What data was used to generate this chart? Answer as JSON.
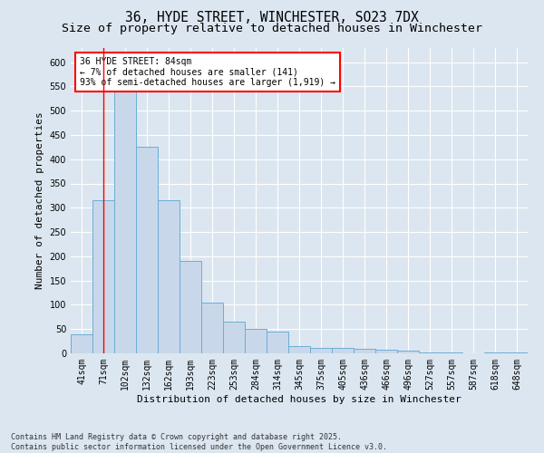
{
  "title_line1": "36, HYDE STREET, WINCHESTER, SO23 7DX",
  "title_line2": "Size of property relative to detached houses in Winchester",
  "xlabel": "Distribution of detached houses by size in Winchester",
  "ylabel": "Number of detached properties",
  "categories": [
    "41sqm",
    "71sqm",
    "102sqm",
    "132sqm",
    "162sqm",
    "193sqm",
    "223sqm",
    "253sqm",
    "284sqm",
    "314sqm",
    "345sqm",
    "375sqm",
    "405sqm",
    "436sqm",
    "466sqm",
    "496sqm",
    "527sqm",
    "557sqm",
    "587sqm",
    "618sqm",
    "648sqm"
  ],
  "values": [
    40,
    315,
    540,
    425,
    315,
    190,
    105,
    65,
    50,
    45,
    15,
    12,
    12,
    10,
    8,
    5,
    2,
    1,
    0,
    1,
    1
  ],
  "bar_color": "#c8d8ea",
  "bar_edge_color": "#6aaed6",
  "background_color": "#dce6f0",
  "grid_color": "#ffffff",
  "annotation_text": "36 HYDE STREET: 84sqm\n← 7% of detached houses are smaller (141)\n93% of semi-detached houses are larger (1,919) →",
  "property_line_x": 1,
  "ylim": [
    0,
    630
  ],
  "yticks": [
    0,
    50,
    100,
    150,
    200,
    250,
    300,
    350,
    400,
    450,
    500,
    550,
    600
  ],
  "footer": "Contains HM Land Registry data © Crown copyright and database right 2025.\nContains public sector information licensed under the Open Government Licence v3.0.",
  "title_fontsize": 10.5,
  "subtitle_fontsize": 9.5,
  "axis_label_fontsize": 8,
  "tick_fontsize": 7,
  "annotation_fontsize": 7,
  "footer_fontsize": 6
}
